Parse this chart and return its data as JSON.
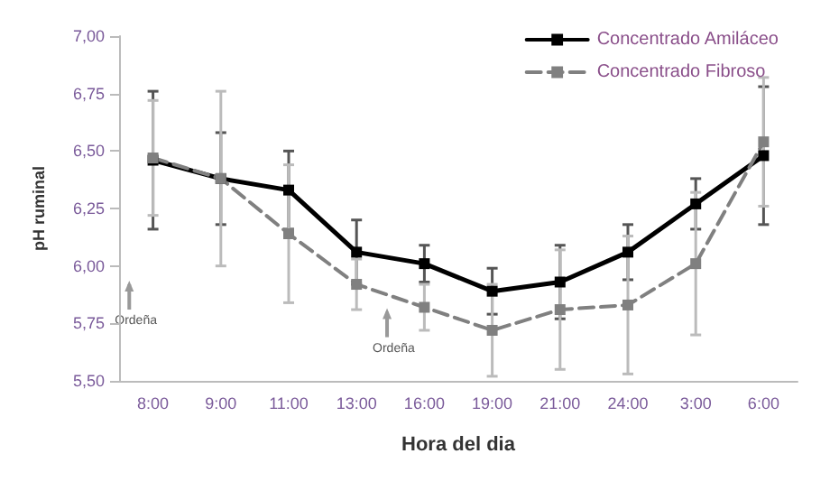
{
  "chart_data": {
    "type": "line",
    "xlabel": "Hora del dia",
    "ylabel": "pH ruminal",
    "categories": [
      "8:00",
      "9:00",
      "11:00",
      "13:00",
      "16:00",
      "19:00",
      "21:00",
      "24:00",
      "3:00",
      "6:00"
    ],
    "series": [
      {
        "name": "Concentrado Amiláceo",
        "color": "#000000",
        "line_style": "solid",
        "values": [
          6.46,
          6.38,
          6.33,
          6.06,
          6.01,
          5.89,
          5.93,
          6.06,
          6.27,
          6.48
        ],
        "errors": [
          0.3,
          0.2,
          0.17,
          0.14,
          0.08,
          0.1,
          0.16,
          0.12,
          0.11,
          0.3
        ]
      },
      {
        "name": "Concentrado Fibroso",
        "color": "#808080",
        "line_style": "dashed",
        "values": [
          6.47,
          6.38,
          6.14,
          5.92,
          5.82,
          5.72,
          5.81,
          5.83,
          6.01,
          6.54
        ],
        "errors": [
          0.25,
          0.38,
          0.3,
          0.11,
          0.1,
          0.2,
          0.26,
          0.3,
          0.31,
          0.28
        ]
      }
    ],
    "ylim": [
      5.5,
      7
    ],
    "yticks": [
      {
        "value": 5.5,
        "label": "5,50"
      },
      {
        "value": 5.75,
        "label": "5,75"
      },
      {
        "value": 6,
        "label": "6,00"
      },
      {
        "value": 6.25,
        "label": "6,25"
      },
      {
        "value": 6.5,
        "label": "6,50"
      },
      {
        "value": 6.75,
        "label": "6,75"
      },
      {
        "value": 7,
        "label": "7,00"
      }
    ],
    "annotations": [
      "Ordeña",
      "Ordeña"
    ],
    "marker": "square",
    "grid": false,
    "legend": "top right"
  }
}
